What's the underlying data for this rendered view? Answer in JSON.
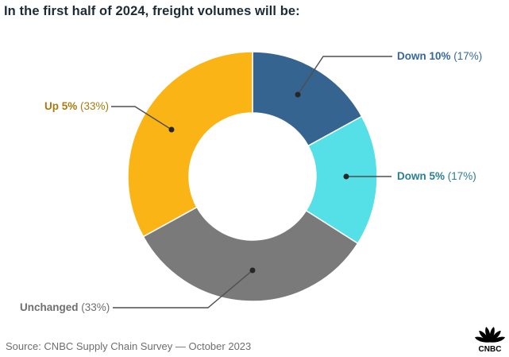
{
  "header": {
    "title": "In the first half of 2024, freight volumes will be:"
  },
  "footer": {
    "source": "Source: CNBC Supply Chain Survey — October 2023",
    "logo_text": "CNBC"
  },
  "chart_data": {
    "type": "pie",
    "subtype": "donut",
    "title": "In the first half of 2024, freight volumes will be:",
    "start_angle_deg": 0,
    "direction": "clockwise",
    "inner_radius_ratio": 0.51,
    "legend_position": "callout-labels",
    "segments": [
      {
        "label": "Down 10%",
        "value_pct": 17,
        "value_label": "(17%)",
        "color": "#34648F",
        "label_color": "#36689C"
      },
      {
        "label": "Down 5%",
        "value_pct": 17,
        "value_label": "(17%)",
        "color": "#55DFE7",
        "label_color": "#2A7F96"
      },
      {
        "label": "Unchanged",
        "value_pct": 33,
        "value_label": "(33%)",
        "color": "#7A7A7A",
        "label_color": "#6F6F6F"
      },
      {
        "label": "Up 5%",
        "value_pct": 33,
        "value_label": "(33%)",
        "color": "#FBB415",
        "label_color": "#A87A10"
      }
    ]
  },
  "colors": {
    "leader_line": "#4f4f4f",
    "leader_dot": "#262626",
    "title_text": "#1c2b36",
    "source_text": "#6e6e6e",
    "logo": "#000000"
  }
}
